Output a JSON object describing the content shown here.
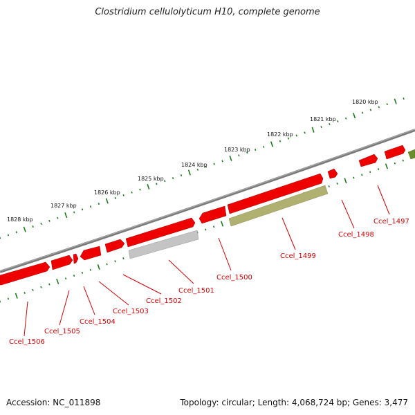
{
  "title": "Clostridium cellulolyticum H10, complete genome",
  "footer": {
    "accession": "Accession: NC_011898",
    "summary": "Topology: circular; Length: 4,068,724 bp; Genes: 3,477"
  },
  "colors": {
    "backbone": "#7a7a7a",
    "tick": "#1a7a1a",
    "label": "#d40000",
    "gene_red": "#ee0000",
    "gene_olive": "#b0b070",
    "gene_gray": "#c4c4c4",
    "gene_green": "#6a8e2a"
  },
  "scale": {
    "labels": [
      "1820 kbp",
      "1821 kbp",
      "1822 kbp",
      "1823 kbp",
      "1824 kbp",
      "1825 kbp",
      "1826 kbp",
      "1827 kbp",
      "1828 kbp"
    ]
  },
  "genes": [
    {
      "label": "Ccel_1497"
    },
    {
      "label": "Ccel_1498"
    },
    {
      "label": "Ccel_1499"
    },
    {
      "label": "Ccel_1500"
    },
    {
      "label": "Ccel_1501"
    },
    {
      "label": "Ccel_1502"
    },
    {
      "label": "Ccel_1503"
    },
    {
      "label": "Ccel_1504"
    },
    {
      "label": "Ccel_1505"
    },
    {
      "label": "Ccel_1506"
    }
  ]
}
